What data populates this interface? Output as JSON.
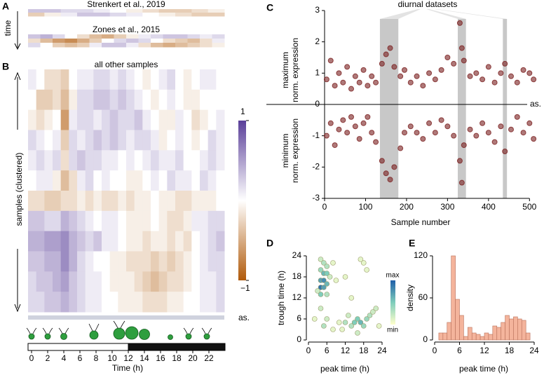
{
  "panels": [
    "A",
    "B",
    "C",
    "D",
    "E"
  ],
  "time_label": "time",
  "chart_data": [
    {
      "type": "heatmap",
      "title": "Strenkert et al., 2019",
      "values": [
        [
          0.3,
          0.3,
          0.2,
          0.2,
          0.1,
          0.0,
          -0.1,
          -0.2,
          -0.3,
          -0.3,
          -0.2,
          -0.1
        ],
        [
          -0.3,
          -0.1,
          0.1,
          0.3,
          0.3,
          0.2,
          0.1,
          0.0,
          -0.1,
          -0.2,
          -0.3,
          -0.3
        ]
      ]
    },
    {
      "type": "heatmap",
      "title": "Zones et al., 2015",
      "values": [
        [
          0.3,
          0.4,
          0.2,
          0.0,
          -0.2,
          -0.4,
          -0.5,
          -0.3,
          -0.1,
          0.1,
          0.2,
          0.3,
          0.3,
          0.2,
          0.1,
          0.2
        ],
        [
          -0.2,
          -0.4,
          -0.6,
          -0.7,
          -0.5,
          -0.3,
          0.0,
          0.2,
          0.3,
          0.2,
          0.0,
          -0.2,
          -0.3,
          -0.4,
          -0.2,
          0.1
        ],
        [
          0.2,
          0.0,
          -0.3,
          -0.4,
          -0.3,
          0.1,
          0.3,
          0.3,
          0.1,
          -0.2,
          -0.4,
          -0.5,
          -0.4,
          -0.3,
          -0.2,
          -0.1
        ]
      ]
    },
    {
      "type": "heatmap",
      "title": "all other samples",
      "ylabel": "samples (clustered)",
      "annotation": "as.",
      "xlabel": "Time (h)",
      "xlim": [
        0,
        24
      ],
      "xticks": [
        0,
        2,
        4,
        6,
        8,
        10,
        12,
        14,
        16,
        18,
        20,
        22
      ],
      "dark_period": [
        12,
        24
      ],
      "clim": [
        -1,
        1
      ],
      "cticks": [
        1,
        {
          "value": -1,
          "label": "−1"
        }
      ],
      "values": [
        [
          0.1,
          0.0,
          -0.2,
          -0.2,
          -0.3,
          0.0,
          0.1,
          0.1,
          0.2,
          0.2,
          0.1,
          0.2,
          0.1,
          0.0,
          -0.1,
          0.0,
          0.1,
          0.2,
          0.0,
          -0.1,
          0.0,
          0.1,
          0.1,
          0.0
        ],
        [
          0.0,
          -0.3,
          -0.3,
          -0.2,
          -0.4,
          -0.1,
          0.2,
          0.2,
          0.3,
          0.3,
          0.2,
          0.3,
          0.2,
          0.1,
          0.0,
          -0.1,
          0.0,
          0.1,
          0.0,
          -0.1,
          -0.1,
          0.0,
          0.0,
          0.0
        ],
        [
          -0.1,
          -0.2,
          -0.1,
          0.0,
          -0.6,
          0.1,
          0.2,
          0.2,
          0.1,
          0.2,
          0.3,
          0.2,
          0.2,
          0.3,
          0.1,
          0.0,
          -0.1,
          -0.1,
          0.1,
          0.0,
          -0.2,
          -0.1,
          0.0,
          0.1
        ],
        [
          0.2,
          0.1,
          0.0,
          0.1,
          -0.3,
          0.2,
          0.1,
          0.2,
          0.3,
          0.2,
          0.3,
          0.2,
          0.1,
          0.2,
          0.2,
          0.1,
          -0.1,
          0.0,
          0.1,
          0.0,
          -0.1,
          0.0,
          0.2,
          0.1
        ],
        [
          0.1,
          0.2,
          0.1,
          0.2,
          -0.2,
          0.2,
          0.3,
          0.2,
          0.2,
          0.1,
          0.1,
          0.0,
          0.1,
          0.0,
          0.1,
          0.2,
          0.1,
          0.1,
          0.2,
          0.0,
          0.0,
          0.1,
          0.2,
          0.1
        ],
        [
          0.0,
          0.1,
          0.1,
          -0.1,
          -0.4,
          -0.2,
          0.1,
          0.2,
          0.0,
          0.1,
          0.0,
          0.0,
          -0.1,
          -0.1,
          0.0,
          0.1,
          0.0,
          0.2,
          0.1,
          0.1,
          0.0,
          0.2,
          0.1,
          0.0
        ],
        [
          -0.2,
          -0.2,
          -0.3,
          -0.3,
          -0.2,
          -0.2,
          -0.1,
          -0.2,
          -0.1,
          -0.2,
          -0.2,
          -0.1,
          -0.2,
          -0.1,
          -0.1,
          0.0,
          -0.1,
          -0.1,
          -0.2,
          -0.2,
          -0.1,
          -0.1,
          -0.1,
          0.0
        ],
        [
          0.3,
          0.3,
          0.2,
          0.2,
          0.4,
          0.3,
          0.2,
          0.1,
          0.0,
          0.1,
          0.1,
          0.0,
          -0.1,
          -0.1,
          -0.1,
          0.0,
          -0.1,
          -0.2,
          -0.2,
          -0.1,
          0.1,
          0.1,
          0.2,
          0.2
        ],
        [
          0.4,
          0.4,
          0.5,
          0.5,
          0.6,
          0.4,
          0.3,
          0.2,
          0.3,
          0.1,
          0.1,
          0.0,
          -0.1,
          -0.1,
          -0.2,
          -0.1,
          -0.1,
          -0.2,
          -0.1,
          -0.2,
          0.0,
          0.1,
          0.2,
          0.3
        ],
        [
          0.3,
          0.3,
          0.4,
          0.4,
          0.6,
          0.4,
          0.2,
          0.1,
          0.0,
          0.0,
          -0.1,
          -0.1,
          -0.2,
          -0.2,
          -0.2,
          -0.3,
          -0.2,
          -0.3,
          -0.2,
          -0.1,
          0.0,
          0.1,
          0.2,
          0.2
        ],
        [
          0.2,
          0.3,
          0.3,
          0.4,
          0.5,
          0.3,
          0.2,
          0.1,
          0.1,
          0.0,
          -0.1,
          -0.1,
          -0.1,
          -0.2,
          -0.3,
          -0.4,
          -0.3,
          -0.2,
          -0.2,
          -0.1,
          0.0,
          0.1,
          0.1,
          0.2
        ],
        [
          0.2,
          0.2,
          0.3,
          0.3,
          0.4,
          0.3,
          0.2,
          0.1,
          0.1,
          0.0,
          0.0,
          -0.1,
          -0.1,
          -0.1,
          -0.2,
          -0.2,
          -0.2,
          -0.1,
          -0.1,
          0.0,
          0.0,
          0.1,
          0.1,
          0.2
        ]
      ]
    },
    {
      "type": "scatter",
      "annotation": "diurnal datasets",
      "zero_label": "as.",
      "ylabel_top": [
        "maximum",
        "norm. expression"
      ],
      "ylabel_bottom": [
        "minimum",
        "norm. expression"
      ],
      "xlabel": "Sample number",
      "xlim": [
        0,
        520
      ],
      "ylim": [
        -3,
        3
      ],
      "xticks": [
        0,
        100,
        200,
        300,
        400,
        500
      ],
      "yticks": [
        -3,
        -2,
        -1,
        0,
        1,
        2,
        3
      ],
      "highlight_ranges": [
        [
          135,
          180
        ],
        [
          325,
          345
        ],
        [
          435,
          445
        ]
      ],
      "color": "#7a1f1f",
      "x": [
        5,
        15,
        25,
        35,
        45,
        55,
        65,
        75,
        85,
        95,
        105,
        115,
        125,
        140,
        150,
        160,
        170,
        185,
        195,
        210,
        225,
        240,
        255,
        270,
        285,
        300,
        315,
        330,
        335,
        340,
        355,
        370,
        385,
        400,
        415,
        430,
        440,
        455,
        470,
        485,
        500,
        510,
        5,
        15,
        25,
        35,
        45,
        55,
        65,
        75,
        85,
        95,
        105,
        115,
        125,
        140,
        150,
        160,
        170,
        185,
        195,
        210,
        225,
        240,
        255,
        270,
        285,
        300,
        315,
        330,
        335,
        340,
        355,
        370,
        385,
        400,
        415,
        430,
        440,
        455,
        470,
        485,
        500,
        510
      ],
      "values": [
        0.8,
        1.4,
        0.6,
        1.0,
        0.7,
        1.2,
        0.5,
        0.9,
        0.7,
        1.1,
        0.6,
        0.9,
        0.7,
        1.3,
        1.6,
        1.8,
        1.2,
        0.9,
        1.1,
        0.7,
        0.9,
        0.6,
        1.0,
        0.8,
        1.1,
        1.5,
        1.3,
        2.6,
        1.8,
        1.4,
        0.9,
        1.0,
        0.8,
        1.2,
        0.7,
        1.0,
        1.3,
        0.9,
        0.7,
        1.1,
        1.0,
        0.8,
        -1.0,
        -0.6,
        -1.3,
        -0.8,
        -0.5,
        -0.9,
        -0.4,
        -0.7,
        -1.1,
        -0.6,
        -0.4,
        -0.9,
        -1.2,
        -1.8,
        -2.2,
        -2.4,
        -2.0,
        -1.4,
        -0.9,
        -0.7,
        -0.9,
        -1.1,
        -0.6,
        -0.9,
        -0.5,
        -0.7,
        -1.0,
        -1.8,
        -2.5,
        -1.3,
        -0.8,
        -1.0,
        -0.6,
        -0.9,
        -1.2,
        -0.7,
        -1.5,
        -0.8,
        -0.4,
        -0.9,
        -0.6,
        -1.1
      ]
    },
    {
      "type": "scatter",
      "xlabel": "peak time (h)",
      "ylabel": "trough time (h)",
      "xlim": [
        0,
        24
      ],
      "ylim": [
        0,
        24
      ],
      "xticks": [
        0,
        6,
        12,
        18,
        24
      ],
      "yticks": [
        0,
        6,
        12,
        18,
        24
      ],
      "color_labels": [
        "max",
        "min"
      ],
      "x": [
        4,
        5,
        6,
        4,
        5,
        6,
        4,
        5,
        6,
        4,
        5,
        4,
        6,
        7,
        3,
        8,
        9,
        12,
        14,
        15,
        16,
        17,
        18,
        19,
        20,
        21,
        22,
        23,
        16,
        13,
        11,
        10,
        8,
        6,
        5,
        4,
        2,
        18,
        19,
        17,
        12,
        14
      ],
      "values": [
        23,
        22,
        21,
        20,
        19,
        19,
        17,
        17,
        16,
        15,
        15,
        13,
        13,
        18,
        14,
        22,
        17,
        5,
        4,
        5,
        6,
        5,
        4,
        6,
        7,
        8,
        9,
        4,
        2,
        7,
        3,
        5,
        3,
        6,
        4,
        9,
        6,
        22,
        20,
        23,
        18,
        12
      ],
      "density": [
        0.2,
        0.3,
        0.3,
        0.4,
        0.6,
        0.5,
        0.7,
        0.8,
        0.6,
        0.9,
        0.7,
        0.5,
        0.3,
        0.2,
        0.2,
        0.1,
        0.1,
        0.3,
        0.3,
        0.5,
        0.5,
        0.6,
        0.4,
        0.4,
        0.3,
        0.2,
        0.2,
        0.1,
        0.2,
        0.2,
        0.1,
        0.1,
        0.1,
        0.2,
        0.3,
        0.2,
        0.1,
        0.1,
        0.1,
        0.1,
        0.1,
        0.1
      ]
    },
    {
      "type": "histogram",
      "xlabel": "peak time (h)",
      "ylabel": "density",
      "xlim": [
        0,
        24
      ],
      "ylim": [
        0,
        120
      ],
      "xticks": [
        0,
        6,
        12,
        18,
        24
      ],
      "yticks": [
        0,
        60,
        120
      ],
      "color": "#f4b49c",
      "bins": [
        0,
        1,
        2,
        3,
        4,
        5,
        6,
        7,
        8,
        9,
        10,
        11,
        12,
        13,
        14,
        15,
        16,
        17,
        18,
        19,
        20,
        21,
        22,
        23,
        24
      ],
      "values": [
        0,
        10,
        10,
        25,
        120,
        58,
        35,
        5,
        18,
        10,
        8,
        5,
        10,
        8,
        20,
        18,
        25,
        35,
        30,
        33,
        30,
        28,
        10,
        0
      ]
    }
  ]
}
